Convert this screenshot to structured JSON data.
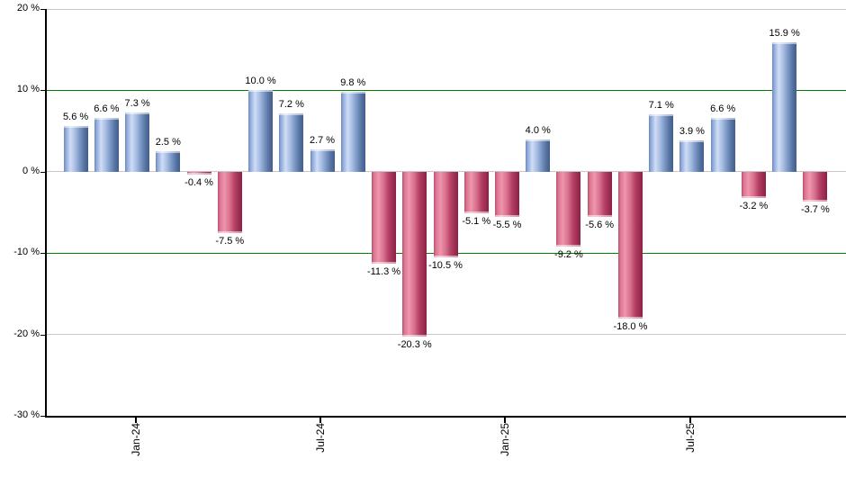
{
  "chart_data": {
    "type": "bar",
    "title": "",
    "xlabel": "",
    "ylabel": "",
    "unit": "%",
    "ylim": [
      -30,
      20
    ],
    "grid": true,
    "legend_position": "none",
    "values": [
      5.6,
      6.6,
      7.3,
      2.5,
      -0.4,
      -7.5,
      10.0,
      7.2,
      2.7,
      9.8,
      -11.3,
      -20.3,
      -10.5,
      -5.1,
      -5.5,
      4.0,
      -9.2,
      -5.6,
      -18.0,
      7.1,
      3.9,
      6.6,
      -3.2,
      15.9,
      -3.7
    ],
    "bar_labels": [
      "5.6 %",
      "6.6 %",
      "7.3 %",
      "2.5 %",
      "-0.4 %",
      "-7.5 %",
      "10.0 %",
      "7.2 %",
      "2.7 %",
      "9.8 %",
      "-11.3 %",
      "-20.3 %",
      "-10.5 %",
      "-5.1 %",
      "-5.5 %",
      "4.0 %",
      "-9.2 %",
      "-5.6 %",
      "-18.0 %",
      "7.1 %",
      "3.9 %",
      "6.6 %",
      "-3.2 %",
      "15.9 %",
      "-3.7 %"
    ],
    "x_ticks": [
      {
        "label": "Jan-24",
        "bar_index": 2
      },
      {
        "label": "Jul-24",
        "bar_index": 8
      },
      {
        "label": "Jan-25",
        "bar_index": 14
      },
      {
        "label": "Jul-25",
        "bar_index": 20
      }
    ],
    "y_ticks": [
      {
        "label": "20 %",
        "value": 20
      },
      {
        "label": "10 %",
        "value": 10
      },
      {
        "label": "0 %",
        "value": 0
      },
      {
        "label": "-10 %",
        "value": -10
      },
      {
        "label": "-20 %",
        "value": -20
      },
      {
        "label": "-30 %",
        "value": -30
      }
    ],
    "gridlines": [
      {
        "value": 20,
        "color": "#c8c8c8"
      },
      {
        "value": 10,
        "color": "#008000"
      },
      {
        "value": 0,
        "color": "#c8c8c8"
      },
      {
        "value": -10,
        "color": "#008000"
      },
      {
        "value": -20,
        "color": "#c8c8c8"
      }
    ],
    "colors": {
      "positive_bar": "#6d90c4",
      "negative_bar": "#c0506e",
      "reference_line_green": "#008000",
      "gridline_gray": "#c8c8c8",
      "axis": "#000000",
      "background": "#ffffff"
    }
  }
}
